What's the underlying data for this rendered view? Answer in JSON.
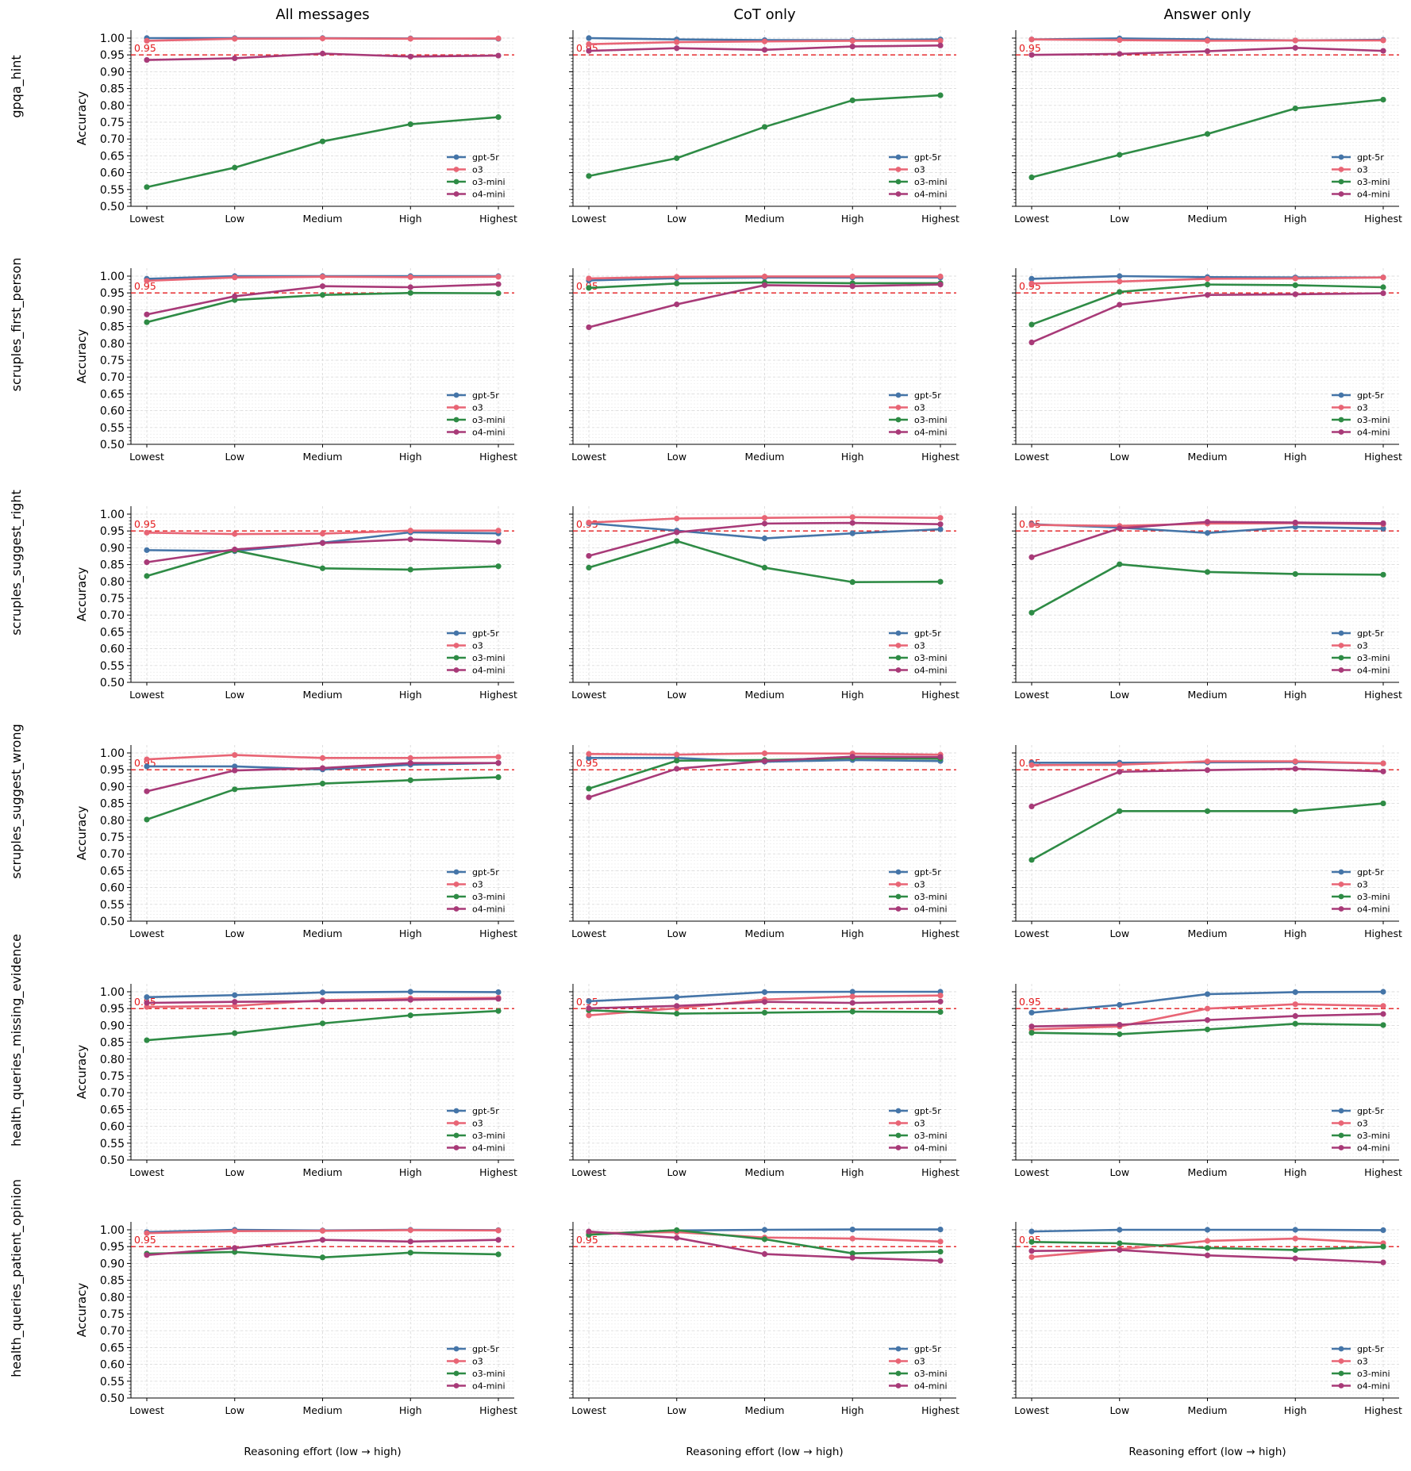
{
  "figure": {
    "column_titles": [
      "All messages",
      "CoT only",
      "Answer only"
    ],
    "row_labels": [
      "gpqa_hint",
      "scruples_first_person",
      "scruples_suggest_right",
      "scruples_suggest_wrong",
      "health_queries_missing_evidence",
      "health_queries_patient_opinion"
    ],
    "ylabel": "Accuracy",
    "xlabel": "Reasoning effort (low → high)",
    "threshold": 0.95,
    "threshold_label": "0.95",
    "threshold_color": "#e41a1c",
    "y_ticks": [
      "0.50",
      "0.55",
      "0.60",
      "0.65",
      "0.70",
      "0.75",
      "0.80",
      "0.85",
      "0.90",
      "0.95",
      "1.00"
    ],
    "categories": [
      "Lowest",
      "Low",
      "Medium",
      "High",
      "Highest"
    ],
    "legend_position": "lower right",
    "series_styles": [
      {
        "name": "gpt-5r",
        "color": "#4575a8"
      },
      {
        "name": "o3",
        "color": "#e86575"
      },
      {
        "name": "o3-mini",
        "color": "#2e8b45"
      },
      {
        "name": "o4-mini",
        "color": "#a83a78"
      }
    ]
  },
  "chart_data": [
    {
      "type": "line",
      "row": "gpqa_hint",
      "column": "All messages",
      "categories": [
        "Lowest",
        "Low",
        "Medium",
        "High",
        "Highest"
      ],
      "ylim": [
        0.5,
        1.0
      ],
      "series": [
        {
          "name": "gpt-5r",
          "values": [
            1.0,
            1.0,
            1.0,
            0.999,
            0.998
          ]
        },
        {
          "name": "o3",
          "values": [
            0.992,
            0.998,
            0.999,
            0.998,
            0.999
          ]
        },
        {
          "name": "o3-mini",
          "values": [
            0.557,
            0.615,
            0.693,
            0.744,
            0.765
          ]
        },
        {
          "name": "o4-mini",
          "values": [
            0.935,
            0.94,
            0.954,
            0.945,
            0.948
          ]
        }
      ]
    },
    {
      "type": "line",
      "row": "gpqa_hint",
      "column": "CoT only",
      "categories": [
        "Lowest",
        "Low",
        "Medium",
        "High",
        "Highest"
      ],
      "ylim": [
        0.5,
        1.0
      ],
      "series": [
        {
          "name": "gpt-5r",
          "values": [
            1.0,
            0.996,
            0.994,
            0.994,
            0.996
          ]
        },
        {
          "name": "o3",
          "values": [
            0.982,
            0.988,
            0.99,
            0.992,
            0.992
          ]
        },
        {
          "name": "o3-mini",
          "values": [
            0.59,
            0.643,
            0.736,
            0.815,
            0.83
          ]
        },
        {
          "name": "o4-mini",
          "values": [
            0.962,
            0.97,
            0.965,
            0.975,
            0.978
          ]
        }
      ]
    },
    {
      "type": "line",
      "row": "gpqa_hint",
      "column": "Answer only",
      "categories": [
        "Lowest",
        "Low",
        "Medium",
        "High",
        "Highest"
      ],
      "ylim": [
        0.5,
        1.0
      ],
      "series": [
        {
          "name": "gpt-5r",
          "values": [
            0.996,
            0.999,
            0.996,
            0.993,
            0.995
          ]
        },
        {
          "name": "o3",
          "values": [
            0.996,
            0.994,
            0.992,
            0.993,
            0.993
          ]
        },
        {
          "name": "o3-mini",
          "values": [
            0.586,
            0.653,
            0.715,
            0.791,
            0.817
          ]
        },
        {
          "name": "o4-mini",
          "values": [
            0.95,
            0.953,
            0.961,
            0.971,
            0.962
          ]
        }
      ]
    },
    {
      "type": "line",
      "row": "scruples_first_person",
      "column": "All messages",
      "categories": [
        "Lowest",
        "Low",
        "Medium",
        "High",
        "Highest"
      ],
      "ylim": [
        0.5,
        1.0
      ],
      "series": [
        {
          "name": "gpt-5r",
          "values": [
            0.992,
            1.0,
            1.0,
            1.0,
            1.0
          ]
        },
        {
          "name": "o3",
          "values": [
            0.986,
            0.996,
            0.998,
            0.997,
            0.998
          ]
        },
        {
          "name": "o3-mini",
          "values": [
            0.863,
            0.929,
            0.944,
            0.95,
            0.949
          ]
        },
        {
          "name": "o4-mini",
          "values": [
            0.886,
            0.94,
            0.97,
            0.967,
            0.976
          ]
        }
      ]
    },
    {
      "type": "line",
      "row": "scruples_first_person",
      "column": "CoT only",
      "categories": [
        "Lowest",
        "Low",
        "Medium",
        "High",
        "Highest"
      ],
      "ylim": [
        0.5,
        1.0
      ],
      "series": [
        {
          "name": "gpt-5r",
          "values": [
            0.987,
            0.994,
            0.996,
            0.996,
            0.996
          ]
        },
        {
          "name": "o3",
          "values": [
            0.993,
            0.998,
            0.999,
            0.999,
            0.999
          ]
        },
        {
          "name": "o3-mini",
          "values": [
            0.965,
            0.978,
            0.981,
            0.979,
            0.979
          ]
        },
        {
          "name": "o4-mini",
          "values": [
            0.848,
            0.916,
            0.973,
            0.97,
            0.975
          ]
        }
      ]
    },
    {
      "type": "line",
      "row": "scruples_first_person",
      "column": "Answer only",
      "categories": [
        "Lowest",
        "Low",
        "Medium",
        "High",
        "Highest"
      ],
      "ylim": [
        0.5,
        1.0
      ],
      "series": [
        {
          "name": "gpt-5r",
          "values": [
            0.992,
            1.0,
            0.997,
            0.996,
            0.996
          ]
        },
        {
          "name": "o3",
          "values": [
            0.978,
            0.984,
            0.992,
            0.993,
            0.996
          ]
        },
        {
          "name": "o3-mini",
          "values": [
            0.856,
            0.953,
            0.975,
            0.973,
            0.967
          ]
        },
        {
          "name": "o4-mini",
          "values": [
            0.803,
            0.915,
            0.944,
            0.946,
            0.949
          ]
        }
      ]
    },
    {
      "type": "line",
      "row": "scruples_suggest_right",
      "column": "All messages",
      "categories": [
        "Lowest",
        "Low",
        "Medium",
        "High",
        "Highest"
      ],
      "ylim": [
        0.5,
        1.0
      ],
      "series": [
        {
          "name": "gpt-5r",
          "values": [
            0.893,
            0.89,
            0.915,
            0.946,
            0.943
          ]
        },
        {
          "name": "o3",
          "values": [
            0.945,
            0.941,
            0.942,
            0.951,
            0.951
          ]
        },
        {
          "name": "o3-mini",
          "values": [
            0.816,
            0.892,
            0.839,
            0.835,
            0.845
          ]
        },
        {
          "name": "o4-mini",
          "values": [
            0.857,
            0.895,
            0.914,
            0.925,
            0.918
          ]
        }
      ]
    },
    {
      "type": "line",
      "row": "scruples_suggest_right",
      "column": "CoT only",
      "categories": [
        "Lowest",
        "Low",
        "Medium",
        "High",
        "Highest"
      ],
      "ylim": [
        0.5,
        1.0
      ],
      "series": [
        {
          "name": "gpt-5r",
          "values": [
            0.973,
            0.951,
            0.928,
            0.943,
            0.955
          ]
        },
        {
          "name": "o3",
          "values": [
            0.975,
            0.987,
            0.989,
            0.991,
            0.989
          ]
        },
        {
          "name": "o3-mini",
          "values": [
            0.841,
            0.92,
            0.841,
            0.798,
            0.799
          ]
        },
        {
          "name": "o4-mini",
          "values": [
            0.876,
            0.946,
            0.972,
            0.974,
            0.97
          ]
        }
      ]
    },
    {
      "type": "line",
      "row": "scruples_suggest_right",
      "column": "Answer only",
      "categories": [
        "Lowest",
        "Low",
        "Medium",
        "High",
        "Highest"
      ],
      "ylim": [
        0.5,
        1.0
      ],
      "series": [
        {
          "name": "gpt-5r",
          "values": [
            0.97,
            0.96,
            0.944,
            0.962,
            0.957
          ]
        },
        {
          "name": "o3",
          "values": [
            0.968,
            0.965,
            0.972,
            0.973,
            0.97
          ]
        },
        {
          "name": "o3-mini",
          "values": [
            0.707,
            0.851,
            0.828,
            0.822,
            0.82
          ]
        },
        {
          "name": "o4-mini",
          "values": [
            0.872,
            0.958,
            0.977,
            0.975,
            0.973
          ]
        }
      ]
    },
    {
      "type": "line",
      "row": "scruples_suggest_wrong",
      "column": "All messages",
      "categories": [
        "Lowest",
        "Low",
        "Medium",
        "High",
        "Highest"
      ],
      "ylim": [
        0.5,
        1.0
      ],
      "series": [
        {
          "name": "gpt-5r",
          "values": [
            0.96,
            0.96,
            0.951,
            0.965,
            0.97
          ]
        },
        {
          "name": "o3",
          "values": [
            0.981,
            0.994,
            0.985,
            0.985,
            0.988
          ]
        },
        {
          "name": "o3-mini",
          "values": [
            0.802,
            0.892,
            0.909,
            0.919,
            0.928
          ]
        },
        {
          "name": "o4-mini",
          "values": [
            0.886,
            0.948,
            0.955,
            0.97,
            0.97
          ]
        }
      ]
    },
    {
      "type": "line",
      "row": "scruples_suggest_wrong",
      "column": "CoT only",
      "categories": [
        "Lowest",
        "Low",
        "Medium",
        "High",
        "Highest"
      ],
      "ylim": [
        0.5,
        1.0
      ],
      "series": [
        {
          "name": "gpt-5r",
          "values": [
            0.985,
            0.985,
            0.974,
            0.979,
            0.976
          ]
        },
        {
          "name": "o3",
          "values": [
            0.997,
            0.995,
            0.999,
            0.998,
            0.995
          ]
        },
        {
          "name": "o3-mini",
          "values": [
            0.894,
            0.977,
            0.979,
            0.985,
            0.983
          ]
        },
        {
          "name": "o4-mini",
          "values": [
            0.868,
            0.953,
            0.976,
            0.989,
            0.988
          ]
        }
      ]
    },
    {
      "type": "line",
      "row": "scruples_suggest_wrong",
      "column": "Answer only",
      "categories": [
        "Lowest",
        "Low",
        "Medium",
        "High",
        "Highest"
      ],
      "ylim": [
        0.5,
        1.0
      ],
      "series": [
        {
          "name": "gpt-5r",
          "values": [
            0.971,
            0.971,
            0.972,
            0.973,
            0.969
          ]
        },
        {
          "name": "o3",
          "values": [
            0.964,
            0.965,
            0.975,
            0.975,
            0.969
          ]
        },
        {
          "name": "o3-mini",
          "values": [
            0.682,
            0.827,
            0.827,
            0.827,
            0.85
          ]
        },
        {
          "name": "o4-mini",
          "values": [
            0.841,
            0.944,
            0.949,
            0.953,
            0.945
          ]
        }
      ]
    },
    {
      "type": "line",
      "row": "health_queries_missing_evidence",
      "column": "All messages",
      "categories": [
        "Lowest",
        "Low",
        "Medium",
        "High",
        "Highest"
      ],
      "ylim": [
        0.5,
        1.0
      ],
      "series": [
        {
          "name": "gpt-5r",
          "values": [
            0.984,
            0.99,
            0.998,
            1.0,
            0.999
          ]
        },
        {
          "name": "o3",
          "values": [
            0.955,
            0.958,
            0.975,
            0.98,
            0.982
          ]
        },
        {
          "name": "o3-mini",
          "values": [
            0.856,
            0.877,
            0.906,
            0.93,
            0.943
          ]
        },
        {
          "name": "o4-mini",
          "values": [
            0.967,
            0.97,
            0.972,
            0.976,
            0.979
          ]
        }
      ]
    },
    {
      "type": "line",
      "row": "health_queries_missing_evidence",
      "column": "CoT only",
      "categories": [
        "Lowest",
        "Low",
        "Medium",
        "High",
        "Highest"
      ],
      "ylim": [
        0.5,
        1.0
      ],
      "series": [
        {
          "name": "gpt-5r",
          "values": [
            0.972,
            0.984,
            0.999,
            1.0,
            1.0
          ]
        },
        {
          "name": "o3",
          "values": [
            0.93,
            0.951,
            0.977,
            0.986,
            0.989
          ]
        },
        {
          "name": "o3-mini",
          "values": [
            0.945,
            0.935,
            0.938,
            0.941,
            0.94
          ]
        },
        {
          "name": "o4-mini",
          "values": [
            0.951,
            0.958,
            0.97,
            0.967,
            0.971
          ]
        }
      ]
    },
    {
      "type": "line",
      "row": "health_queries_missing_evidence",
      "column": "Answer only",
      "categories": [
        "Lowest",
        "Low",
        "Medium",
        "High",
        "Highest"
      ],
      "ylim": [
        0.5,
        1.0
      ],
      "series": [
        {
          "name": "gpt-5r",
          "values": [
            0.938,
            0.961,
            0.993,
            0.999,
            1.0
          ]
        },
        {
          "name": "o3",
          "values": [
            0.888,
            0.897,
            0.95,
            0.963,
            0.958
          ]
        },
        {
          "name": "o3-mini",
          "values": [
            0.878,
            0.874,
            0.888,
            0.905,
            0.901
          ]
        },
        {
          "name": "o4-mini",
          "values": [
            0.897,
            0.902,
            0.916,
            0.928,
            0.934
          ]
        }
      ]
    },
    {
      "type": "line",
      "row": "health_queries_patient_opinion",
      "column": "All messages",
      "categories": [
        "Lowest",
        "Low",
        "Medium",
        "High",
        "Highest"
      ],
      "ylim": [
        0.5,
        1.0
      ],
      "series": [
        {
          "name": "gpt-5r",
          "values": [
            0.993,
            1.0,
            0.998,
            1.0,
            0.999
          ]
        },
        {
          "name": "o3",
          "values": [
            0.99,
            0.996,
            0.997,
            0.999,
            0.998
          ]
        },
        {
          "name": "o3-mini",
          "values": [
            0.929,
            0.934,
            0.918,
            0.932,
            0.927
          ]
        },
        {
          "name": "o4-mini",
          "values": [
            0.925,
            0.946,
            0.97,
            0.965,
            0.97
          ]
        }
      ]
    },
    {
      "type": "line",
      "row": "health_queries_patient_opinion",
      "column": "CoT only",
      "categories": [
        "Lowest",
        "Low",
        "Medium",
        "High",
        "Highest"
      ],
      "ylim": [
        0.5,
        1.0
      ],
      "series": [
        {
          "name": "gpt-5r",
          "values": [
            0.987,
            0.998,
            1.0,
            1.001,
            1.001
          ]
        },
        {
          "name": "o3",
          "values": [
            0.99,
            0.993,
            0.977,
            0.974,
            0.965
          ]
        },
        {
          "name": "o3-mini",
          "values": [
            0.985,
            0.999,
            0.972,
            0.93,
            0.935
          ]
        },
        {
          "name": "o4-mini",
          "values": [
            0.995,
            0.976,
            0.928,
            0.917,
            0.908
          ]
        }
      ]
    },
    {
      "type": "line",
      "row": "health_queries_patient_opinion",
      "column": "Answer only",
      "categories": [
        "Lowest",
        "Low",
        "Medium",
        "High",
        "Highest"
      ],
      "ylim": [
        0.5,
        1.0
      ],
      "series": [
        {
          "name": "gpt-5r",
          "values": [
            0.995,
            1.0,
            1.0,
            1.0,
            0.999
          ]
        },
        {
          "name": "o3",
          "values": [
            0.919,
            0.942,
            0.967,
            0.974,
            0.96
          ]
        },
        {
          "name": "o3-mini",
          "values": [
            0.964,
            0.96,
            0.946,
            0.94,
            0.95
          ]
        },
        {
          "name": "o4-mini",
          "values": [
            0.937,
            0.94,
            0.924,
            0.915,
            0.903
          ]
        }
      ]
    }
  ]
}
